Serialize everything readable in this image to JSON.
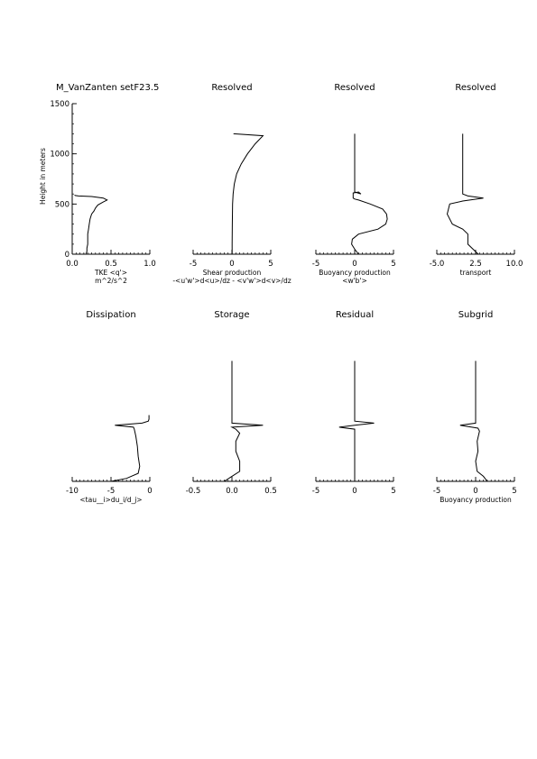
{
  "chart_data": [
    {
      "type": "line",
      "title": "M_VanZanten setF23.5",
      "xlabel": [
        "TKE  <q'>",
        "m^2/s^2"
      ],
      "ylabel": "Height in meters",
      "xlim": [
        0.0,
        1.0
      ],
      "ylim": [
        0,
        1500
      ],
      "xticks": [
        "0.0",
        "0.5",
        "1.0"
      ],
      "yticks": [
        "0",
        "500",
        "1000",
        "1500"
      ],
      "series": [
        {
          "x": [
            0.18,
            0.19,
            0.19,
            0.2,
            0.2,
            0.2,
            0.21,
            0.22,
            0.23,
            0.25,
            0.28,
            0.3,
            0.33,
            0.4,
            0.45,
            0.4,
            0.25,
            0.08,
            0.04,
            0.03
          ],
          "y": [
            5,
            30,
            60,
            100,
            150,
            200,
            250,
            300,
            350,
            400,
            430,
            460,
            490,
            520,
            540,
            560,
            575,
            580,
            585,
            590
          ]
        }
      ]
    },
    {
      "type": "line",
      "title": "Resolved",
      "xlabel": [
        "Shear production",
        "-<u'w'>d<u>/dz - <v'w'>d<v>/dz"
      ],
      "xlim": [
        -5,
        5
      ],
      "ylim": [
        0,
        1500
      ],
      "xticks": [
        "-5",
        "0",
        "5"
      ],
      "series": [
        {
          "x": [
            0.2,
            4.0,
            3.0,
            2.0,
            1.2,
            0.6,
            0.3,
            0.15,
            0.08,
            0.05,
            0.02,
            0.02,
            0.08,
            0.0,
            0.0
          ],
          "y": [
            1200,
            1180,
            1100,
            1000,
            900,
            800,
            700,
            600,
            500,
            300,
            100,
            0,
            0,
            0,
            0
          ]
        }
      ]
    },
    {
      "type": "line",
      "title": "Resolved",
      "xlabel": [
        "Buoyancy production",
        "<w'b'>"
      ],
      "xlim": [
        -5,
        5
      ],
      "ylim": [
        0,
        1500
      ],
      "xticks": [
        "-5",
        "0",
        "5"
      ],
      "series": [
        {
          "x": [
            0.5,
            0.0,
            -0.4,
            -0.3,
            0.5,
            3.0,
            4.0,
            4.2,
            4.1,
            3.6,
            2.0,
            0.5,
            0.0,
            -0.2,
            -0.2,
            -0.2,
            -0.2,
            -0.2,
            0.5,
            0.8,
            0.0,
            0.0,
            0.0,
            0.0
          ],
          "y": [
            0,
            50,
            100,
            150,
            200,
            250,
            300,
            350,
            400,
            450,
            500,
            540,
            550,
            560,
            580,
            590,
            600,
            610,
            620,
            600,
            620,
            700,
            900,
            1200
          ]
        }
      ]
    },
    {
      "type": "line",
      "title": "Resolved",
      "xlabel": [
        "transport"
      ],
      "xlim": [
        -5.0,
        10.0
      ],
      "ylim": [
        0,
        1500
      ],
      "xticks": [
        "-5.0",
        "2.5",
        "10.0"
      ],
      "series": [
        {
          "x": [
            3.0,
            2.0,
            1.0,
            1.0,
            0.0,
            -2.0,
            -3.0,
            -2.5,
            0.0,
            4.0,
            1.0,
            0.0,
            0.0,
            0.0,
            0.0
          ],
          "y": [
            0,
            50,
            100,
            200,
            250,
            300,
            400,
            500,
            530,
            560,
            580,
            600,
            620,
            900,
            1200
          ]
        }
      ]
    },
    {
      "type": "line",
      "title": "Dissipation",
      "xlabel": [
        "<tau__i>du_i/d_j>"
      ],
      "xlim": [
        -10,
        0
      ],
      "ylim": [
        0,
        1500
      ],
      "xticks": [
        "-10",
        "-5",
        "0"
      ],
      "series": [
        {
          "x": [
            -5.0,
            -3.0,
            -1.5,
            -1.3,
            -1.5,
            -1.6,
            -1.8,
            -2.0,
            -2.1,
            -4.5,
            -1.0,
            -0.2,
            -0.1,
            -0.1
          ],
          "y": [
            0,
            30,
            80,
            150,
            250,
            350,
            450,
            520,
            540,
            560,
            580,
            600,
            620,
            660
          ]
        }
      ]
    },
    {
      "type": "line",
      "title": "Storage",
      "xlabel": [
        ""
      ],
      "xlim": [
        -0.5,
        0.5
      ],
      "ylim": [
        0,
        1500
      ],
      "xticks": [
        "-0.5",
        "0.0",
        "0.5"
      ],
      "series": [
        {
          "x": [
            -0.1,
            0.0,
            0.1,
            0.1,
            0.05,
            0.05,
            0.1,
            0.05,
            0.0,
            0.4,
            0.0,
            0.0,
            0.0,
            0.0
          ],
          "y": [
            0,
            50,
            100,
            200,
            300,
            400,
            480,
            520,
            540,
            560,
            580,
            600,
            900,
            1200
          ]
        }
      ]
    },
    {
      "type": "line",
      "title": "Residual",
      "xlabel": [
        ""
      ],
      "xlim": [
        -5,
        5
      ],
      "ylim": [
        0,
        1500
      ],
      "xticks": [
        "-5",
        "0",
        "5"
      ],
      "series": [
        {
          "x": [
            0.0,
            0.0,
            0.0,
            0.0,
            -2.0,
            0.0,
            2.5,
            0.0,
            0.0,
            0.0,
            0.0
          ],
          "y": [
            0,
            100,
            300,
            520,
            540,
            560,
            580,
            600,
            620,
            900,
            1200
          ]
        }
      ]
    },
    {
      "type": "line",
      "title": "Subgrid",
      "xlabel": [
        "Buoyancy production"
      ],
      "xlim": [
        -5,
        5
      ],
      "ylim": [
        0,
        1500
      ],
      "xticks": [
        "-5",
        "0",
        "5"
      ],
      "series": [
        {
          "x": [
            1.5,
            1.0,
            0.2,
            0.0,
            0.3,
            0.2,
            0.5,
            0.3,
            -2.0,
            0.0,
            0.0,
            0.0,
            0.0
          ],
          "y": [
            0,
            50,
            100,
            200,
            300,
            400,
            500,
            530,
            560,
            580,
            600,
            900,
            1200
          ]
        }
      ]
    }
  ]
}
